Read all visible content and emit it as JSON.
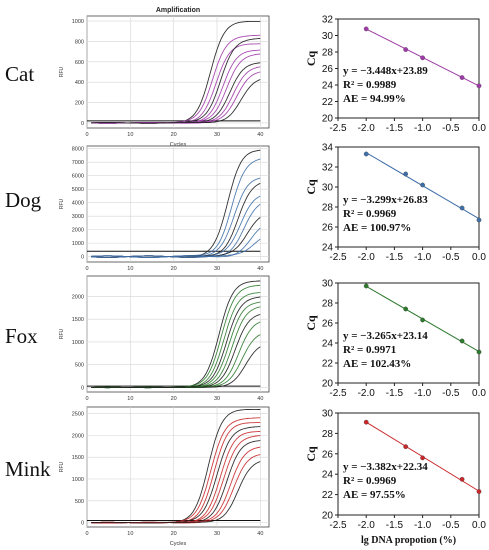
{
  "figure": {
    "amplification_title": "Amplification",
    "ylabel_amp": "RFU",
    "xlabel_amp": "Cycles",
    "xlabel_std": "lg DNA propotion (%)",
    "ylabel_std": "Cq"
  },
  "chart_data": [
    {
      "type": "line",
      "species": "Cat",
      "title": "Amplification",
      "xlabel": "Cycles",
      "ylabel": "RFU",
      "xlim": [
        0,
        42
      ],
      "ylim": [
        -50,
        1050
      ],
      "xticks": [
        0,
        10,
        20,
        30,
        40
      ],
      "yticks": [
        0,
        200,
        400,
        600,
        800,
        1000
      ],
      "curve_color": "#a03aa8",
      "threshold": 20,
      "series": [
        {
          "ct": 24.5,
          "plateau": 1000
        },
        {
          "ct": 25.0,
          "plateau": 860
        },
        {
          "ct": 25.8,
          "plateau": 780
        },
        {
          "ct": 26.8,
          "plateau": 830
        },
        {
          "ct": 27.4,
          "plateau": 720
        },
        {
          "ct": 28.2,
          "plateau": 680
        },
        {
          "ct": 29.0,
          "plateau": 600
        },
        {
          "ct": 29.7,
          "plateau": 560
        },
        {
          "ct": 30.6,
          "plateau": 520
        },
        {
          "ct": 31.5,
          "plateau": 450
        }
      ]
    },
    {
      "type": "scatter",
      "species": "Cat",
      "xlabel": "",
      "ylabel": "Cq",
      "xlim": [
        -2.5,
        0.0
      ],
      "ylim": [
        20,
        32
      ],
      "xticks": [
        "-2.5",
        "-2.0",
        "-1.5",
        "-1.0",
        "-0.5",
        "0.0"
      ],
      "yticks": [
        "20",
        "22",
        "24",
        "26",
        "28",
        "30",
        "32"
      ],
      "color": "#a03aa8",
      "equation": "y = −3.448x+23.89",
      "r2": "R² = 0.9989",
      "ae": "AE = 94.99%",
      "slope": -3.448,
      "intercept": 23.89,
      "x": [
        -2.0,
        -1.3,
        -1.0,
        -0.3,
        0.0
      ],
      "y": [
        30.8,
        28.3,
        27.3,
        24.9,
        23.9
      ]
    },
    {
      "type": "line",
      "species": "Dog",
      "title": "",
      "xlabel": "",
      "ylabel": "RFU",
      "xlim": [
        0,
        42
      ],
      "ylim": [
        -400,
        8200
      ],
      "xticks": [
        0,
        10,
        20,
        30,
        40
      ],
      "yticks": [
        0,
        1000,
        2000,
        3000,
        4000,
        5000,
        6000,
        7000,
        8000
      ],
      "curve_color": "#3f6fa8",
      "threshold": 400,
      "series": [
        {
          "ct": 28.5,
          "plateau": 8000
        },
        {
          "ct": 29.3,
          "plateau": 7300
        },
        {
          "ct": 30.0,
          "plateau": 6000
        },
        {
          "ct": 30.8,
          "plateau": 5600
        },
        {
          "ct": 31.5,
          "plateau": 4800
        },
        {
          "ct": 32.2,
          "plateau": 4200
        },
        {
          "ct": 33.0,
          "plateau": 3400
        },
        {
          "ct": 33.8,
          "plateau": 2600
        },
        {
          "ct": 34.6,
          "plateau": 1900
        }
      ]
    },
    {
      "type": "scatter",
      "species": "Dog",
      "xlabel": "",
      "ylabel": "Cq",
      "xlim": [
        -2.5,
        0.0
      ],
      "ylim": [
        24,
        34
      ],
      "xticks": [
        "-2.5",
        "-2.0",
        "-1.5",
        "-1.0",
        "-0.5",
        "0.0"
      ],
      "yticks": [
        "24",
        "26",
        "28",
        "30",
        "32",
        "34"
      ],
      "color": "#3f6fa8",
      "equation": "y = −3.299x+26.83",
      "r2": "R² = 0.9969",
      "ae": "AE = 100.97%",
      "slope": -3.299,
      "intercept": 26.83,
      "x": [
        -2.0,
        -1.3,
        -1.0,
        -0.3,
        0.0
      ],
      "y": [
        33.3,
        31.3,
        30.2,
        27.9,
        26.7
      ]
    },
    {
      "type": "line",
      "species": "Fox",
      "title": "",
      "xlabel": "",
      "ylabel": "RFU",
      "xlim": [
        0,
        42
      ],
      "ylim": [
        -100,
        2450
      ],
      "xticks": [
        0,
        10,
        20,
        30,
        40
      ],
      "yticks": [
        0,
        500,
        1000,
        1500,
        2000
      ],
      "curve_color": "#2e7a2e",
      "threshold": 30,
      "series": [
        {
          "ct": 26.5,
          "plateau": 2350
        },
        {
          "ct": 27.0,
          "plateau": 2250
        },
        {
          "ct": 27.6,
          "plateau": 2100
        },
        {
          "ct": 28.2,
          "plateau": 2000
        },
        {
          "ct": 28.8,
          "plateau": 1900
        },
        {
          "ct": 29.5,
          "plateau": 1800
        },
        {
          "ct": 30.2,
          "plateau": 1650
        },
        {
          "ct": 31.0,
          "plateau": 1500
        },
        {
          "ct": 31.8,
          "plateau": 1250
        },
        {
          "ct": 32.6,
          "plateau": 1000
        }
      ]
    },
    {
      "type": "scatter",
      "species": "Fox",
      "xlabel": "",
      "ylabel": "Cq",
      "xlim": [
        -2.5,
        0.0
      ],
      "ylim": [
        20,
        30
      ],
      "xticks": [
        "-2.5",
        "-2.0",
        "-1.5",
        "-1.0",
        "-0.5",
        "0.0"
      ],
      "yticks": [
        "20",
        "22",
        "24",
        "26",
        "28",
        "30"
      ],
      "color": "#2e7a2e",
      "equation": "y = −3.265x+23.14",
      "r2": "R² = 0.9971",
      "ae": "AE = 102.43%",
      "slope": -3.265,
      "intercept": 23.14,
      "x": [
        -2.0,
        -1.3,
        -1.0,
        -0.3,
        0.0
      ],
      "y": [
        29.7,
        27.4,
        26.3,
        24.2,
        23.1
      ]
    },
    {
      "type": "line",
      "species": "Mink",
      "title": "",
      "xlabel": "Cycles",
      "ylabel": "RFU",
      "xlim": [
        0,
        42
      ],
      "ylim": [
        -100,
        2650
      ],
      "xticks": [
        0,
        10,
        20,
        30,
        40
      ],
      "yticks": [
        0,
        500,
        1000,
        1500,
        2000,
        2500
      ],
      "curve_color": "#c8282a",
      "threshold": 50,
      "series": [
        {
          "ct": 24.0,
          "plateau": 2600
        },
        {
          "ct": 24.6,
          "plateau": 2400
        },
        {
          "ct": 25.3,
          "plateau": 2300
        },
        {
          "ct": 26.0,
          "plateau": 2200
        },
        {
          "ct": 26.8,
          "plateau": 2100
        },
        {
          "ct": 27.5,
          "plateau": 2000
        },
        {
          "ct": 28.3,
          "plateau": 1900
        },
        {
          "ct": 29.1,
          "plateau": 1750
        },
        {
          "ct": 29.9,
          "plateau": 1600
        },
        {
          "ct": 30.8,
          "plateau": 1450
        }
      ]
    },
    {
      "type": "scatter",
      "species": "Mink",
      "xlabel": "lg DNA propotion (%)",
      "ylabel": "Cq",
      "xlim": [
        -2.5,
        0.0
      ],
      "ylim": [
        20,
        30
      ],
      "xticks": [
        "-2.5",
        "-2.0",
        "-1.5",
        "-1.0",
        "-0.5",
        "0.0"
      ],
      "yticks": [
        "20",
        "22",
        "24",
        "26",
        "28",
        "30"
      ],
      "color": "#c8282a",
      "equation": "y = −3.382x+22.34",
      "r2": "R² = 0.9969",
      "ae": "AE = 97.55%",
      "slope": -3.382,
      "intercept": 22.34,
      "x": [
        -2.0,
        -1.3,
        -1.0,
        -0.3,
        0.0
      ],
      "y": [
        29.1,
        26.7,
        25.6,
        23.5,
        22.3
      ]
    }
  ]
}
